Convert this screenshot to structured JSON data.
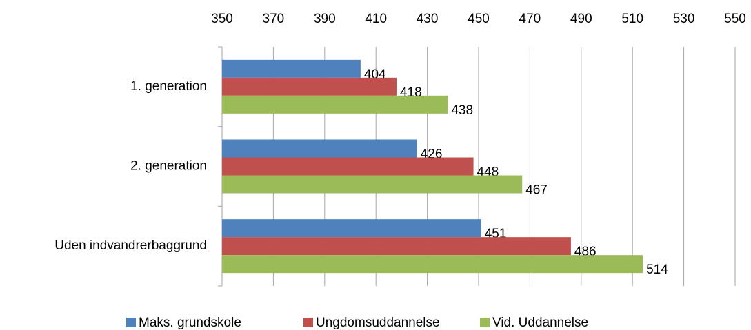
{
  "chart_data": {
    "type": "hbar",
    "categories": [
      "1. generation",
      "2. generation",
      "Uden indvandrerbaggrund"
    ],
    "series": [
      {
        "name": "Maks. grundskole",
        "color": "#4f81bd",
        "values": [
          404,
          426,
          451
        ]
      },
      {
        "name": "Ungdomsuddannelse",
        "color": "#c0504d",
        "values": [
          418,
          448,
          486
        ]
      },
      {
        "name": "Vid. Uddannelse",
        "color": "#9bbb59",
        "values": [
          438,
          467,
          514
        ]
      }
    ],
    "xlim": [
      350,
      550
    ],
    "xticks": [
      350,
      370,
      390,
      410,
      430,
      450,
      470,
      490,
      510,
      530,
      550
    ],
    "grid": true,
    "legend": "bottom"
  }
}
